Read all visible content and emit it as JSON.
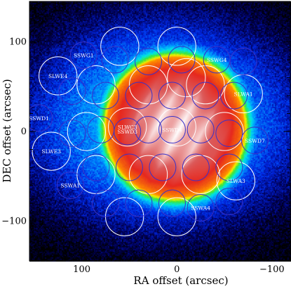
{
  "chart_data": {
    "type": "heatmap",
    "title": "",
    "xlabel": "RA offset (arcsec)",
    "ylabel": "DEC offset (arcsec)",
    "xlim": [
      155,
      -120
    ],
    "ylim": [
      -145,
      145
    ],
    "x_inverted": true,
    "x_ticks": [
      100,
      0,
      -100
    ],
    "x_tick_labels": [
      "100",
      "0",
      "−100"
    ],
    "y_ticks": [
      100,
      0,
      -100
    ],
    "y_tick_labels": [
      "100",
      "0",
      "−100"
    ],
    "colormap": "rainbow (black → blue → cyan → green → yellow → red → white)",
    "colors": {
      "slw_circle": "#ffffff",
      "ssw_circle": "#3a32c8",
      "background": "#000000"
    },
    "emission_model": {
      "source": {
        "center": [
          2,
          5
        ],
        "radius_x": 72,
        "radius_y": 78,
        "peak": 1.0
      },
      "halo": {
        "center": [
          15,
          10
        ],
        "radius_x": 150,
        "radius_y": 120,
        "level": 0.38
      }
    },
    "slw_detectors": [
      {
        "name": "SLWE4",
        "ra": 125,
        "dec": 62,
        "label_visible": true
      },
      {
        "name": "SLWE3",
        "ra": 132,
        "dec": -22,
        "label_visible": true
      },
      {
        "name": "SLWA1",
        "ra": -70,
        "dec": 42,
        "label_visible": true
      },
      {
        "name": "SLWA3",
        "ra": -62,
        "dec": -55,
        "label_visible": true
      },
      {
        "name": "SLWC3",
        "ra": 52,
        "dec": 5,
        "label_visible": true
      },
      {
        "name": "",
        "ra": 60,
        "dec": 95,
        "label_visible": false
      },
      {
        "name": "",
        "ra": 0,
        "dec": 95,
        "label_visible": false
      },
      {
        "name": "",
        "ra": 85,
        "dec": 52,
        "label_visible": false
      },
      {
        "name": "",
        "ra": 30,
        "dec": 52,
        "label_visible": false
      },
      {
        "name": "",
        "ra": -30,
        "dec": 52,
        "label_visible": false
      },
      {
        "name": "",
        "ra": 95,
        "dec": 0,
        "label_visible": false
      },
      {
        "name": "",
        "ra": 0,
        "dec": 5,
        "label_visible": false
      },
      {
        "name": "",
        "ra": -50,
        "dec": 0,
        "label_visible": false
      },
      {
        "name": "",
        "ra": 85,
        "dec": -48,
        "label_visible": false
      },
      {
        "name": "",
        "ra": 30,
        "dec": -48,
        "label_visible": false
      },
      {
        "name": "",
        "ra": -25,
        "dec": -48,
        "label_visible": false
      },
      {
        "name": "",
        "ra": 55,
        "dec": -95,
        "label_visible": false
      },
      {
        "name": "",
        "ra": 0,
        "dec": -95,
        "label_visible": false
      },
      {
        "name": "",
        "ra": -10,
        "dec": 60,
        "label_visible": false
      }
    ],
    "ssw_detectors": [
      {
        "name": "SSWG1",
        "ra": 98,
        "dec": 85,
        "label_visible": true
      },
      {
        "name": "SSWG4",
        "ra": -42,
        "dec": 80,
        "label_visible": true
      },
      {
        "name": "SSWD1",
        "ra": 145,
        "dec": 15,
        "label_visible": true
      },
      {
        "name": "SSWD4",
        "ra": 5,
        "dec": 2,
        "label_visible": true
      },
      {
        "name": "SSWD7",
        "ra": -82,
        "dec": -10,
        "label_visible": true
      },
      {
        "name": "SSWA1",
        "ra": 112,
        "dec": -60,
        "label_visible": true
      },
      {
        "name": "SSWA4",
        "ra": -25,
        "dec": -85,
        "label_visible": true
      },
      {
        "name": "SSWD3",
        "ra": 52,
        "dec": 0,
        "label_visible": true
      },
      {
        "name": "",
        "ra": 65,
        "dec": 80,
        "label_visible": false
      },
      {
        "name": "",
        "ra": 30,
        "dec": 78,
        "label_visible": false
      },
      {
        "name": "",
        "ra": -5,
        "dec": 80,
        "label_visible": false
      },
      {
        "name": "",
        "ra": -70,
        "dec": 78,
        "label_visible": false
      },
      {
        "name": "",
        "ra": 110,
        "dec": 45,
        "label_visible": false
      },
      {
        "name": "",
        "ra": 75,
        "dec": 40,
        "label_visible": false
      },
      {
        "name": "",
        "ra": 40,
        "dec": 40,
        "label_visible": false
      },
      {
        "name": "",
        "ra": 5,
        "dec": 40,
        "label_visible": false
      },
      {
        "name": "",
        "ra": -30,
        "dec": 40,
        "label_visible": false
      },
      {
        "name": "",
        "ra": -60,
        "dec": 40,
        "label_visible": false
      },
      {
        "name": "",
        "ra": 110,
        "dec": -2,
        "label_visible": false
      },
      {
        "name": "",
        "ra": 80,
        "dec": 2,
        "label_visible": false
      },
      {
        "name": "",
        "ra": 30,
        "dec": 2,
        "label_visible": false
      },
      {
        "name": "",
        "ra": -25,
        "dec": 2,
        "label_visible": false
      },
      {
        "name": "",
        "ra": -55,
        "dec": -2,
        "label_visible": false
      },
      {
        "name": "",
        "ra": 85,
        "dec": -40,
        "label_visible": false
      },
      {
        "name": "",
        "ra": 50,
        "dec": -40,
        "label_visible": false
      },
      {
        "name": "",
        "ra": 15,
        "dec": -40,
        "label_visible": false
      },
      {
        "name": "",
        "ra": -20,
        "dec": -40,
        "label_visible": false
      },
      {
        "name": "",
        "ra": -55,
        "dec": -40,
        "label_visible": false
      },
      {
        "name": "",
        "ra": 75,
        "dec": -80,
        "label_visible": false
      },
      {
        "name": "",
        "ra": 40,
        "dec": -80,
        "label_visible": false
      },
      {
        "name": "",
        "ra": 5,
        "dec": -80,
        "label_visible": false
      },
      {
        "name": "",
        "ra": -55,
        "dec": -78,
        "label_visible": false
      }
    ],
    "slw_radius_arcsec": 20,
    "ssw_radius_arcsec": 14
  }
}
